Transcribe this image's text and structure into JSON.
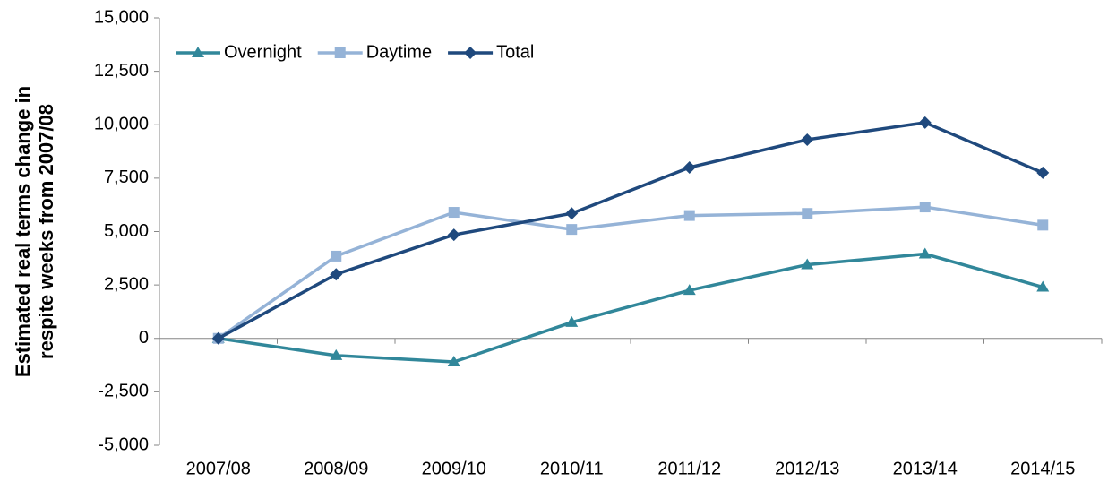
{
  "chart_data": {
    "type": "line",
    "y_label": [
      "Estimated real terms change in",
      "respite weeks  from 2007/08"
    ],
    "categories": [
      "2007/08",
      "2008/09",
      "2009/10",
      "2010/11",
      "2011/12",
      "2012/13",
      "2013/14",
      "2014/15"
    ],
    "series": [
      {
        "name": "Overnight",
        "color": "#31879a",
        "marker": "triangle",
        "values": [
          0,
          -800,
          -1100,
          750,
          2250,
          3450,
          3950,
          2400
        ]
      },
      {
        "name": "Daytime",
        "color": "#95b3d7",
        "marker": "square",
        "values": [
          0,
          3850,
          5900,
          5100,
          5750,
          5850,
          6150,
          5300
        ]
      },
      {
        "name": "Total",
        "color": "#1f497d",
        "marker": "diamond",
        "values": [
          0,
          3000,
          4850,
          5850,
          8000,
          9300,
          10100,
          7750
        ]
      }
    ],
    "ylim": [
      -5000,
      15000
    ],
    "yticks": [
      {
        "value": -5000,
        "label": "-5,000"
      },
      {
        "value": -2500,
        "label": "-2,500"
      },
      0,
      {
        "value": 2500,
        "label": "2,500"
      },
      {
        "value": 5000,
        "label": "5,000"
      },
      {
        "value": 7500,
        "label": "7,500"
      },
      {
        "value": 10000,
        "label": "10,000"
      },
      {
        "value": 12500,
        "label": "12,500"
      },
      {
        "value": 15000,
        "label": "15,000"
      }
    ],
    "grid": false,
    "legend": "top-left"
  }
}
